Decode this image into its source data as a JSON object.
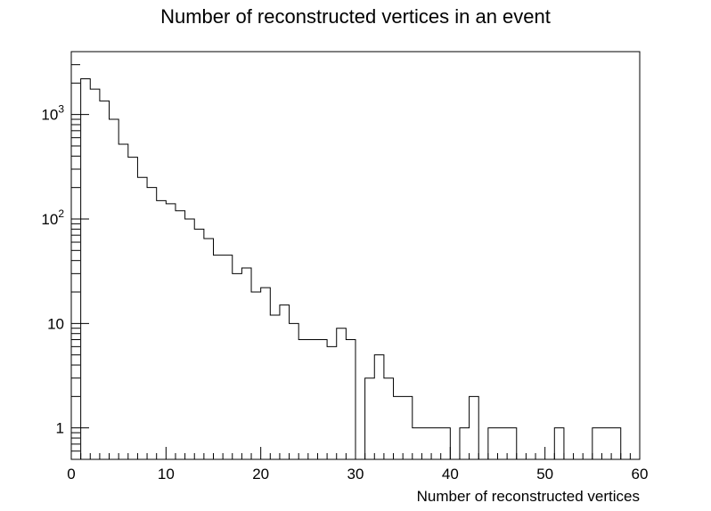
{
  "chart_data": {
    "type": "histogram",
    "title": "Number of reconstructed vertices in an event",
    "xlabel": "Number of reconstructed vertices",
    "ylabel": "",
    "xlim": [
      0,
      60
    ],
    "ylim": [
      0.5,
      4000
    ],
    "log_y": true,
    "grid": false,
    "legend": "none",
    "x_ticks": [
      "0",
      "10",
      "20",
      "30",
      "40",
      "50",
      "60"
    ],
    "y_ticks": [
      {
        "value": 1,
        "label": "1"
      },
      {
        "value": 10,
        "label": "10"
      },
      {
        "value": 100,
        "label": "10^2"
      },
      {
        "value": 1000,
        "label": "10^3"
      }
    ],
    "bins": {
      "edges": [
        0,
        1,
        2,
        3,
        4,
        5,
        6,
        7,
        8,
        9,
        10,
        11,
        12,
        13,
        14,
        15,
        16,
        17,
        18,
        19,
        20,
        21,
        22,
        23,
        24,
        25,
        26,
        27,
        28,
        29,
        30,
        31,
        32,
        33,
        34,
        35,
        36,
        37,
        38,
        39,
        40,
        41,
        42,
        43,
        44,
        45,
        46,
        47,
        48,
        49,
        50,
        51,
        52,
        53,
        54,
        55,
        56,
        57,
        58,
        59,
        60
      ],
      "values": [
        0,
        2200,
        1750,
        1350,
        900,
        520,
        390,
        250,
        200,
        150,
        140,
        120,
        100,
        80,
        65,
        45,
        45,
        30,
        34,
        20,
        22,
        12,
        15,
        10,
        7,
        7,
        7,
        6,
        9,
        7,
        0,
        3,
        5,
        3,
        2,
        2,
        1,
        1,
        1,
        1,
        0,
        1,
        2,
        0,
        1,
        1,
        1,
        0,
        0,
        0,
        0,
        1,
        0,
        0,
        0,
        1,
        1,
        1,
        0,
        0
      ]
    },
    "line_color": "#000000"
  }
}
